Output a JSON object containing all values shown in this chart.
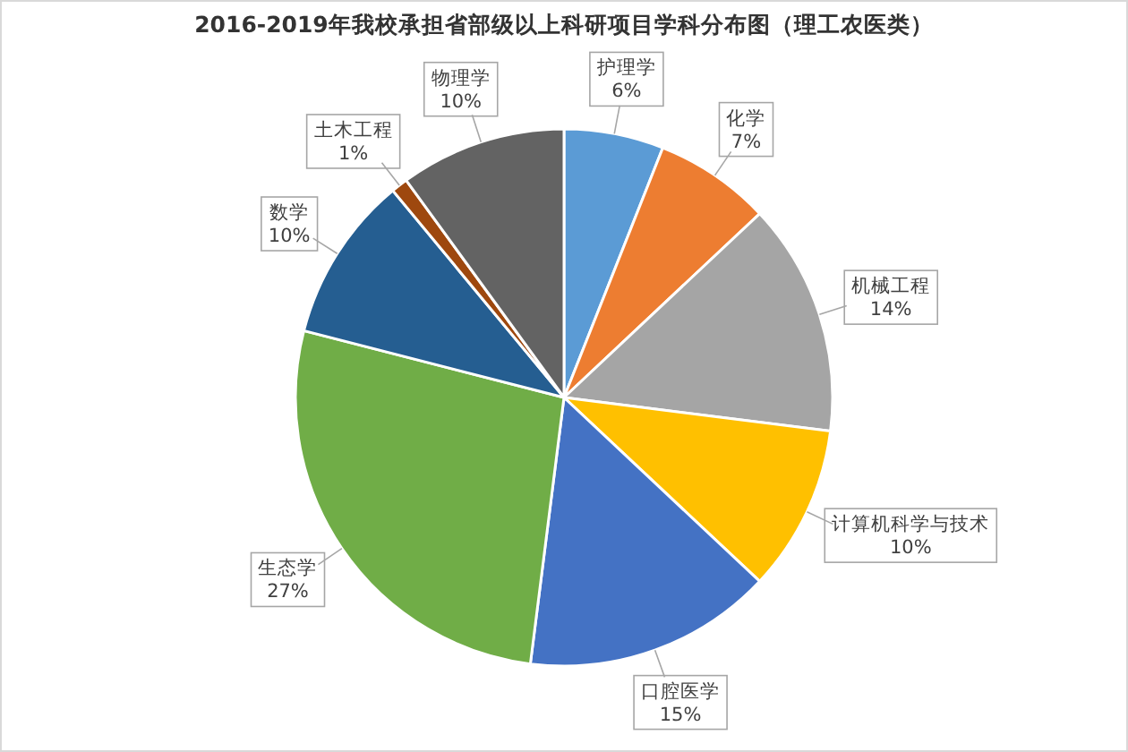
{
  "chart_data": {
    "type": "pie",
    "title": "2016-2019年我校承担省部级以上科研项目学科分布图（理工农医类）",
    "categories": [
      "护理学",
      "化学",
      "机械工程",
      "计算机科学与技术",
      "口腔医学",
      "生态学",
      "数学",
      "土木工程",
      "物理学"
    ],
    "values": [
      6,
      7,
      14,
      10,
      15,
      27,
      10,
      1,
      10
    ],
    "value_labels": [
      "6%",
      "7%",
      "14%",
      "10%",
      "15%",
      "27%",
      "10%",
      "1%",
      "10%"
    ],
    "colors": [
      "#5b9bd5",
      "#ed7d31",
      "#a5a5a5",
      "#ffc000",
      "#4472c4",
      "#70ad47",
      "#255e91",
      "#9e480e",
      "#636363"
    ]
  }
}
